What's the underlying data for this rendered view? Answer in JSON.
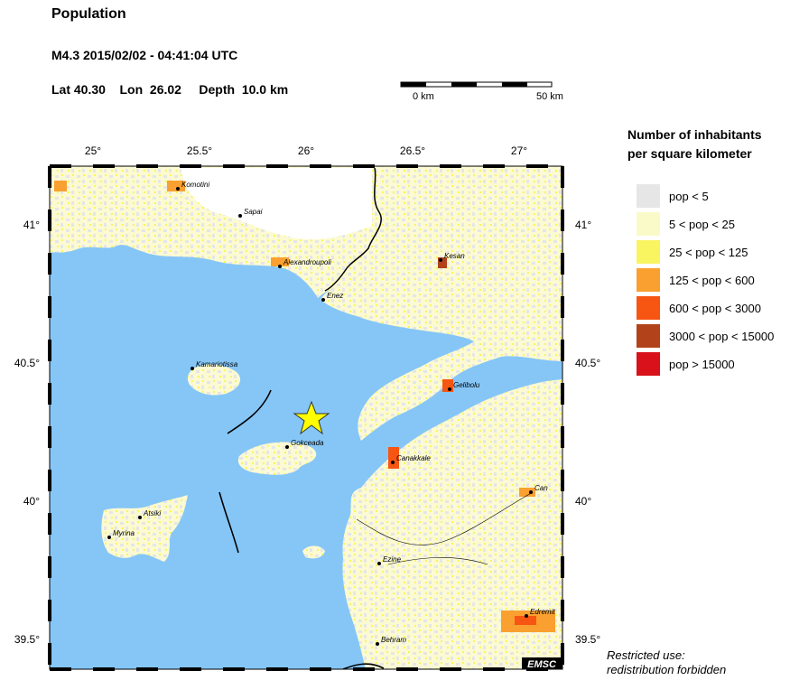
{
  "header": {
    "title": "Population",
    "event_line": "M4.3  2015/02/02 - 04:41:04 UTC",
    "coords_line": "Lat 40.30    Lon  26.02     Depth  10.0 km"
  },
  "scale": {
    "left_label": "0 km",
    "right_label": "50 km"
  },
  "legend": {
    "title_line1": "Number of inhabitants",
    "title_line2": "per square kilometer",
    "items": [
      {
        "label": "pop < 5",
        "color": "#e6e6e6"
      },
      {
        "label": "5 < pop < 25",
        "color": "#fafac8"
      },
      {
        "label": "25 < pop < 125",
        "color": "#f8f560"
      },
      {
        "label": "125 < pop < 600",
        "color": "#f9a030"
      },
      {
        "label": "600 < pop < 3000",
        "color": "#f75512"
      },
      {
        "label": "3000 < pop < 15000",
        "color": "#b1421a"
      },
      {
        "label": "pop > 15000",
        "color": "#d9111b"
      }
    ]
  },
  "map": {
    "lon_ticks": [
      "25°",
      "25.5°",
      "26°",
      "26.5°",
      "27°"
    ],
    "lat_ticks": [
      "41°",
      "40.5°",
      "40°",
      "39.5°"
    ],
    "epicenter": {
      "lat": 40.3,
      "lon": 26.02
    },
    "cities": [
      {
        "name": "Komotini"
      },
      {
        "name": "Sapai"
      },
      {
        "name": "Alexandroupoli"
      },
      {
        "name": "Enez"
      },
      {
        "name": "Kesan"
      },
      {
        "name": "Kamariotissa"
      },
      {
        "name": "Gelibolu"
      },
      {
        "name": "Gokceada"
      },
      {
        "name": "Canakkale"
      },
      {
        "name": "Can"
      },
      {
        "name": "Atsiki"
      },
      {
        "name": "Myrina"
      },
      {
        "name": "Ezine"
      },
      {
        "name": "Edremit"
      },
      {
        "name": "Behram"
      }
    ],
    "badge": "EMSC",
    "colors": {
      "sea": "#85c6f7",
      "land": "#fbfad2",
      "star": "#ffff00"
    }
  },
  "footer": {
    "line1": "Restricted use:",
    "line2": "redistribution forbidden"
  }
}
